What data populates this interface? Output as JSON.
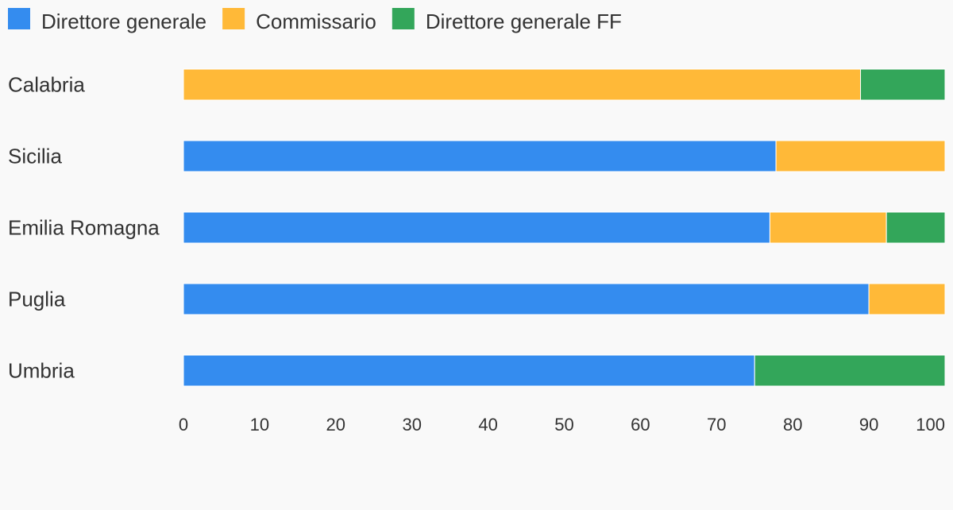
{
  "chart_data": {
    "type": "bar",
    "orientation": "horizontal",
    "stacked": true,
    "categories": [
      "Calabria",
      "Sicilia",
      "Emilia Romagna",
      "Puglia",
      "Umbria"
    ],
    "series": [
      {
        "name": "Direttore generale",
        "color": "#348cef",
        "values": [
          0,
          77.8,
          77,
          90,
          75
        ]
      },
      {
        "name": "Commissario",
        "color": "#ffb938",
        "values": [
          88.9,
          22.2,
          15.3,
          10,
          0
        ]
      },
      {
        "name": "Direttore generale FF",
        "color": "#33a65a",
        "values": [
          11.1,
          0,
          7.7,
          0,
          25
        ]
      }
    ],
    "x_ticks": [
      "0",
      "10",
      "20",
      "30",
      "40",
      "50",
      "60",
      "70",
      "80",
      "90",
      "100"
    ],
    "xlim": [
      0,
      100
    ],
    "legend_position": "top-left",
    "grid": false
  }
}
